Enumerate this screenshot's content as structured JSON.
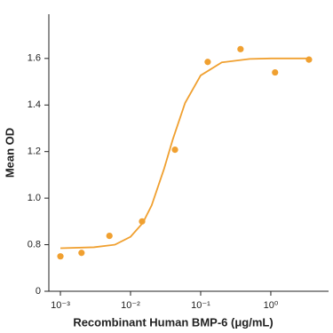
{
  "chart_data": {
    "type": "scatter",
    "x_label": "Recombinant Human BMP-6 (μg/mL)",
    "y_label": "Mean OD",
    "x_log": true,
    "y_axis_break": true,
    "xlim": [
      0.000684,
      6.66
    ],
    "ylim": [
      0,
      1.79
    ],
    "xticks": [
      {
        "value": 0.001,
        "label": "10⁻³"
      },
      {
        "value": 0.01,
        "label": "10⁻²"
      },
      {
        "value": 0.1,
        "label": "10⁻¹"
      },
      {
        "value": 1,
        "label": "10⁰"
      }
    ],
    "yticks": [
      0,
      0.8,
      {
        "value": 1.0,
        "label": "1.0"
      },
      1.2,
      1.4,
      1.6
    ],
    "series": [
      {
        "color": "#f0a030",
        "style": "points",
        "x": [
          0.001,
          0.002,
          0.005,
          0.0146,
          0.043,
          0.126,
          0.37,
          1.15,
          3.5
        ],
        "values": [
          0.75,
          0.765,
          0.838,
          0.9,
          1.208,
          1.585,
          1.64,
          1.54,
          1.595
        ]
      },
      {
        "color": "#f0a030",
        "style": "line",
        "x": [
          0.001,
          0.003,
          0.006,
          0.01,
          0.015,
          0.02,
          0.03,
          0.04,
          0.06,
          0.1,
          0.2,
          0.5,
          1,
          3.5
        ],
        "values": [
          0.785,
          0.789,
          0.8,
          0.834,
          0.894,
          0.969,
          1.125,
          1.252,
          1.409,
          1.527,
          1.583,
          1.598,
          1.6,
          1.6
        ]
      }
    ]
  }
}
